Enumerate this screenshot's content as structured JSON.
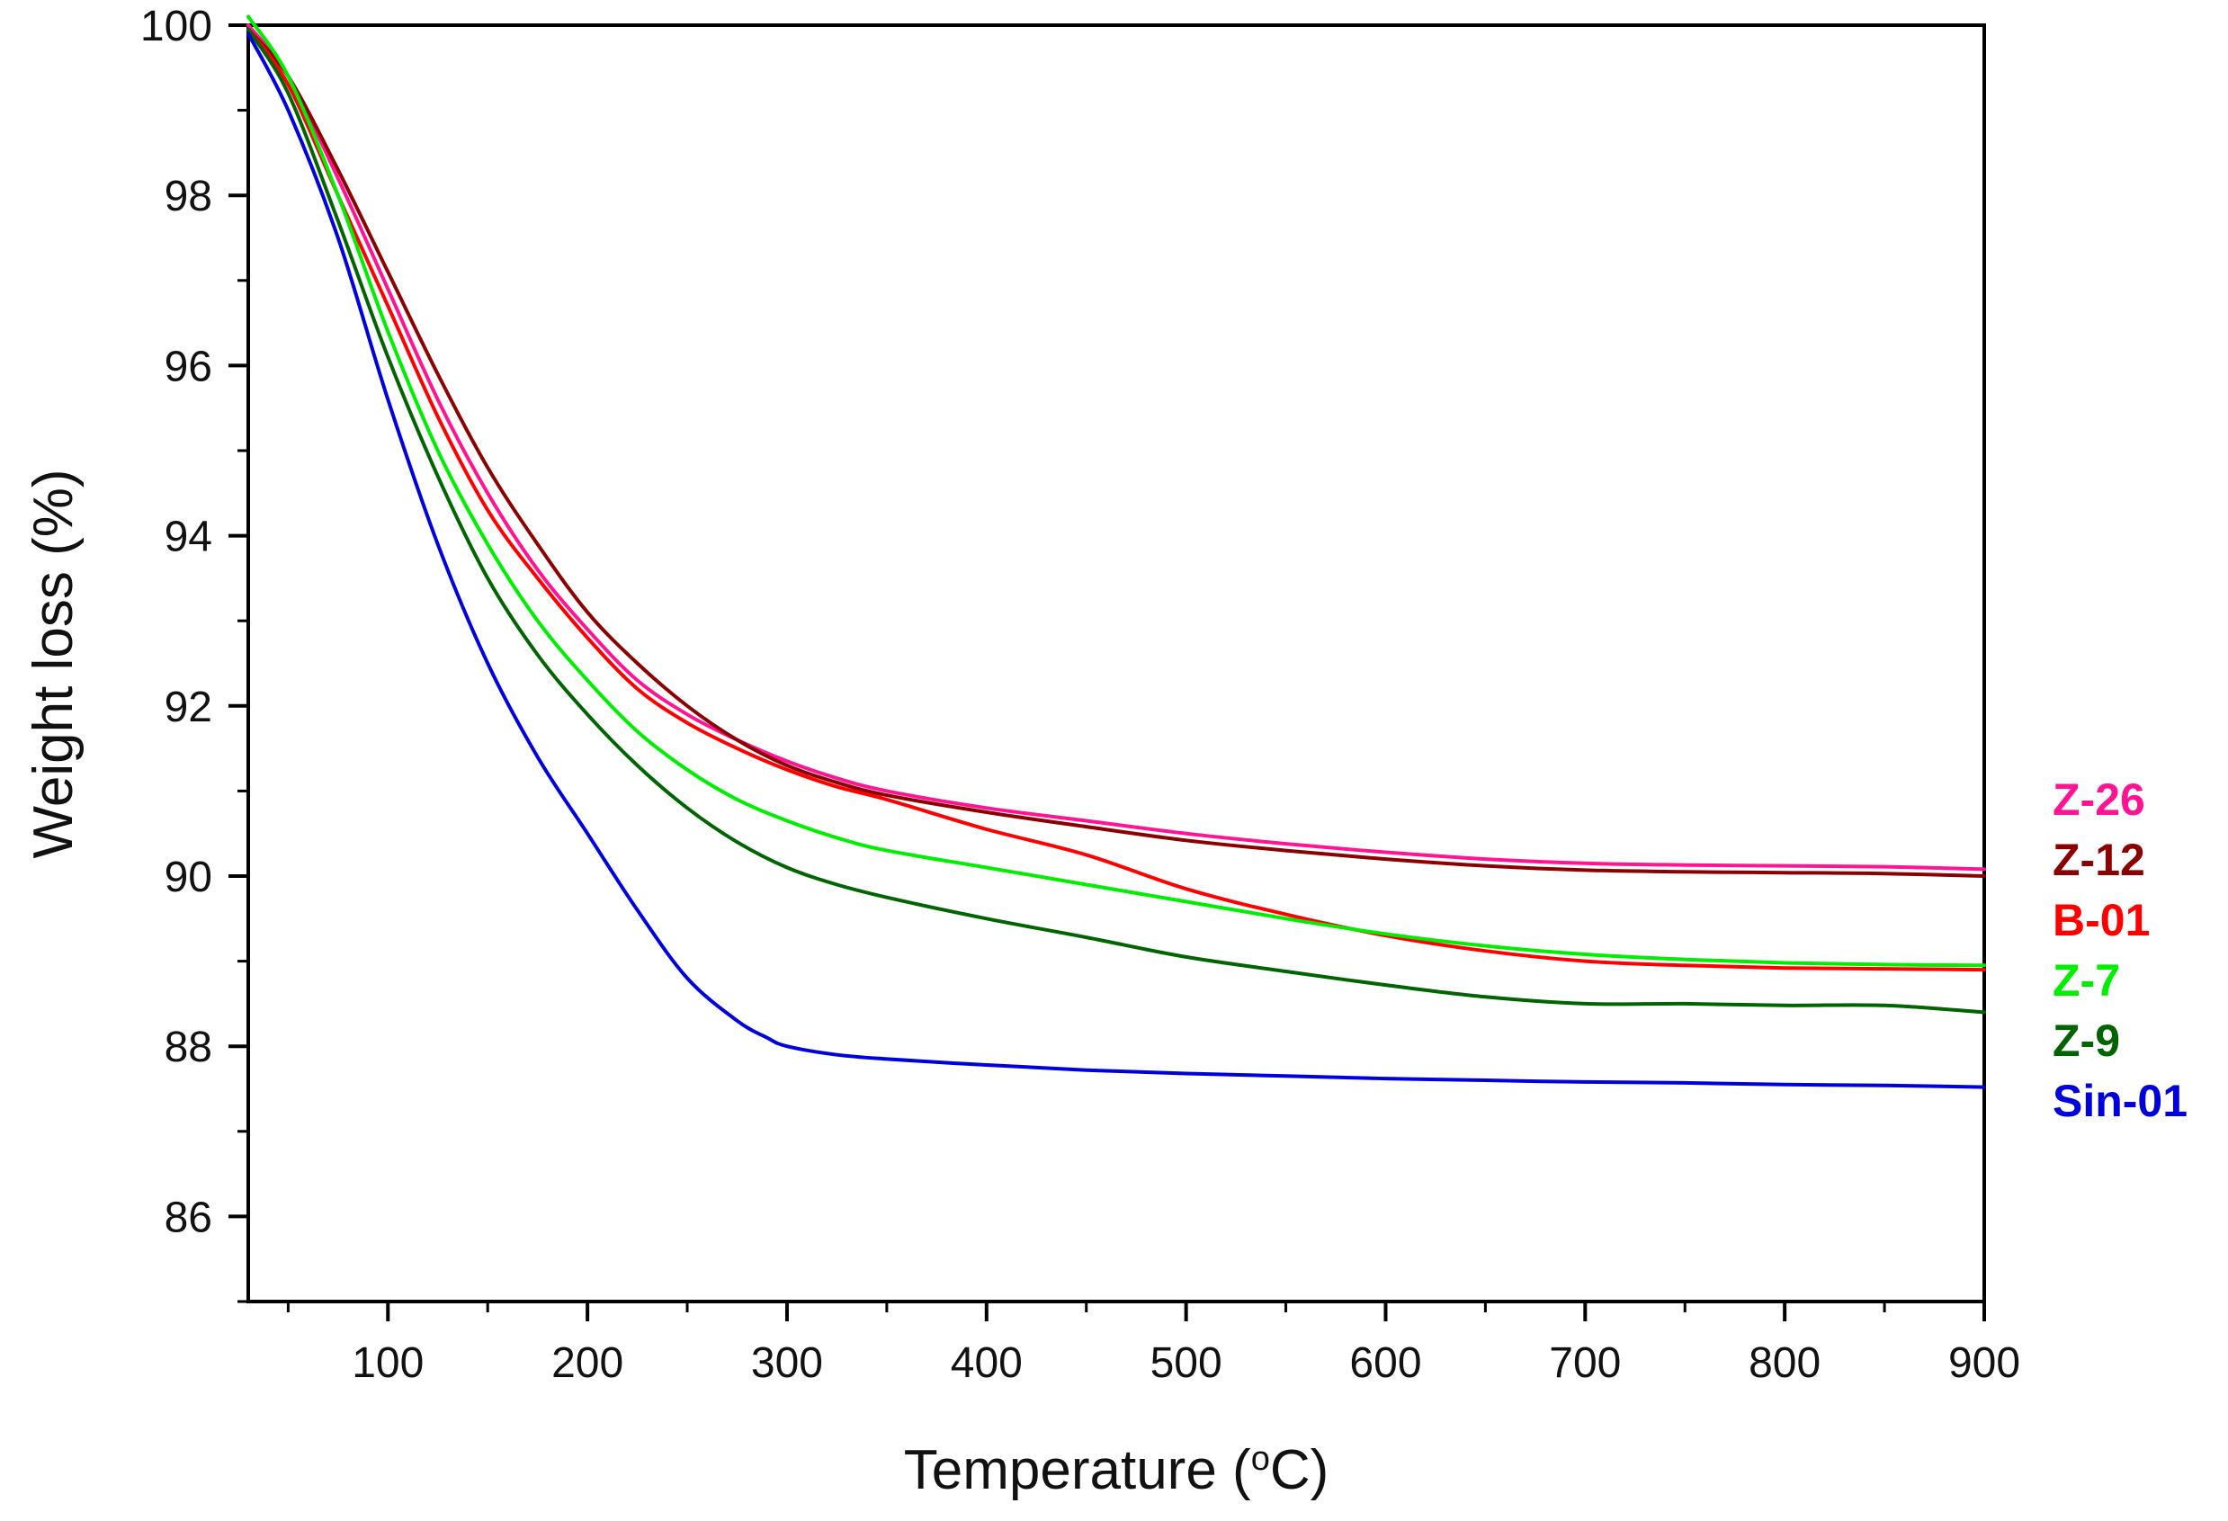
{
  "chart_data": {
    "type": "line",
    "title": "",
    "xlabel": "Temperature (",
    "xlabel_sup": "o",
    "xlabel_end": "C)",
    "ylabel": "Weight loss (%)",
    "xlim": [
      30,
      900
    ],
    "ylim": [
      85,
      100
    ],
    "x_ticks": [
      100,
      200,
      300,
      400,
      500,
      600,
      700,
      800,
      900
    ],
    "x_tick_labels": [
      "100",
      "200",
      "300",
      "400",
      "500",
      "600",
      "700",
      "800",
      "900"
    ],
    "y_ticks": [
      86,
      88,
      90,
      92,
      94,
      96,
      98,
      100
    ],
    "y_tick_labels": [
      "86",
      "88",
      "90",
      "92",
      "94",
      "96",
      "98",
      "100"
    ],
    "legend_position": "right",
    "series": [
      {
        "name": "Z-26",
        "color": "#ff1493",
        "x": [
          30,
          50,
          75,
          100,
          125,
          150,
          175,
          200,
          225,
          250,
          275,
          300,
          325,
          350,
          400,
          450,
          500,
          550,
          600,
          650,
          700,
          750,
          800,
          850,
          900
        ],
        "y": [
          100.0,
          99.4,
          98.2,
          96.9,
          95.6,
          94.5,
          93.6,
          92.9,
          92.3,
          91.9,
          91.6,
          91.35,
          91.15,
          91.0,
          90.8,
          90.65,
          90.5,
          90.38,
          90.28,
          90.2,
          90.15,
          90.13,
          90.12,
          90.11,
          90.08
        ]
      },
      {
        "name": "Z-12",
        "color": "#8b0000",
        "x": [
          30,
          50,
          75,
          100,
          125,
          150,
          175,
          200,
          225,
          250,
          275,
          300,
          325,
          350,
          400,
          450,
          500,
          550,
          600,
          650,
          700,
          750,
          800,
          850,
          900
        ],
        "y": [
          99.95,
          99.4,
          98.3,
          97.1,
          95.9,
          94.8,
          93.9,
          93.1,
          92.5,
          92.0,
          91.6,
          91.3,
          91.1,
          90.95,
          90.75,
          90.58,
          90.42,
          90.3,
          90.2,
          90.12,
          90.07,
          90.05,
          90.04,
          90.03,
          90.0
        ]
      },
      {
        "name": "B-01",
        "color": "#ff0000",
        "x": [
          30,
          50,
          75,
          100,
          125,
          150,
          175,
          200,
          225,
          250,
          275,
          300,
          325,
          350,
          400,
          450,
          500,
          550,
          600,
          650,
          700,
          750,
          800,
          850,
          900
        ],
        "y": [
          99.95,
          99.3,
          98.0,
          96.7,
          95.4,
          94.3,
          93.5,
          92.8,
          92.2,
          91.8,
          91.5,
          91.25,
          91.05,
          90.9,
          90.55,
          90.25,
          89.85,
          89.55,
          89.3,
          89.12,
          89.0,
          88.95,
          88.92,
          88.91,
          88.9
        ]
      },
      {
        "name": "Z-7",
        "color": "#00ee00",
        "x": [
          30,
          50,
          75,
          100,
          125,
          150,
          175,
          200,
          225,
          250,
          275,
          300,
          325,
          350,
          400,
          450,
          500,
          550,
          600,
          650,
          700,
          750,
          800,
          850,
          900
        ],
        "y": [
          100.1,
          99.4,
          98.0,
          96.4,
          95.0,
          93.9,
          93.0,
          92.3,
          91.7,
          91.25,
          90.9,
          90.65,
          90.45,
          90.3,
          90.1,
          89.9,
          89.7,
          89.5,
          89.32,
          89.18,
          89.08,
          89.02,
          88.98,
          88.96,
          88.95
        ]
      },
      {
        "name": "Z-9",
        "color": "#006400",
        "x": [
          30,
          50,
          75,
          100,
          125,
          150,
          175,
          200,
          225,
          250,
          275,
          300,
          325,
          350,
          400,
          450,
          500,
          550,
          600,
          650,
          700,
          750,
          800,
          850,
          900
        ],
        "y": [
          99.95,
          99.2,
          97.7,
          96.1,
          94.7,
          93.5,
          92.6,
          91.9,
          91.3,
          90.8,
          90.4,
          90.1,
          89.9,
          89.75,
          89.5,
          89.28,
          89.05,
          88.88,
          88.72,
          88.58,
          88.5,
          88.5,
          88.48,
          88.48,
          88.4
        ]
      },
      {
        "name": "Sin-01",
        "color": "#0000dd",
        "x": [
          30,
          50,
          75,
          100,
          125,
          150,
          175,
          200,
          225,
          250,
          275,
          290,
          300,
          325,
          350,
          400,
          450,
          500,
          550,
          600,
          650,
          700,
          750,
          800,
          850,
          900
        ],
        "y": [
          99.9,
          99.0,
          97.5,
          95.6,
          93.9,
          92.5,
          91.4,
          90.5,
          89.6,
          88.8,
          88.3,
          88.1,
          88.0,
          87.9,
          87.85,
          87.78,
          87.72,
          87.68,
          87.65,
          87.62,
          87.6,
          87.58,
          87.57,
          87.55,
          87.54,
          87.52
        ]
      }
    ]
  }
}
